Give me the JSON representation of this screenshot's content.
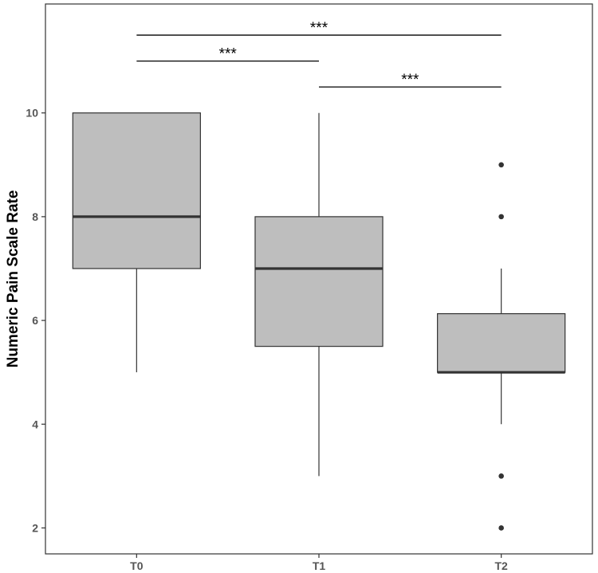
{
  "chart_data": {
    "type": "box",
    "ylabel": "Numeric Pain Scale Rate",
    "xlabel": "",
    "categories": [
      "T0",
      "T1",
      "T2"
    ],
    "ylim": [
      1.5,
      12.1
    ],
    "yticks": [
      2,
      4,
      6,
      8,
      10
    ],
    "ytick_labels": [
      "2",
      "4",
      "6",
      "8",
      "10"
    ],
    "grid": false,
    "box_color": "#bebebe",
    "line_color": "#333333",
    "boxes": [
      {
        "category": "T0",
        "whisker_low": 5,
        "q1": 7,
        "median": 8,
        "q3": 10,
        "whisker_high": 10,
        "outliers": []
      },
      {
        "category": "T1",
        "whisker_low": 3,
        "q1": 5.5,
        "median": 7,
        "q3": 8,
        "whisker_high": 10,
        "outliers": []
      },
      {
        "category": "T2",
        "whisker_low": 4,
        "q1": 5,
        "median": 5,
        "q3": 6.13,
        "whisker_high": 7,
        "outliers": [
          2,
          3,
          8,
          9
        ]
      }
    ],
    "comparisons": [
      {
        "from": "T0",
        "to": "T2",
        "y": 11.5,
        "label": "***"
      },
      {
        "from": "T0",
        "to": "T1",
        "y": 11.0,
        "label": "***"
      },
      {
        "from": "T1",
        "to": "T2",
        "y": 10.5,
        "label": "***"
      }
    ]
  }
}
